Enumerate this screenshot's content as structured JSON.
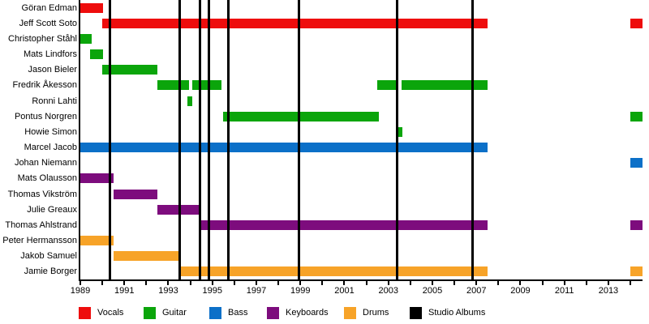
{
  "chart_data": {
    "type": "timeline",
    "description": "Band members tenure timeline with studio album release lines",
    "x_axis": {
      "min": 1989,
      "max": 2014.55,
      "tick_start": 1989,
      "tick_end": 2014,
      "tick_step": 1,
      "label_years": [
        1989,
        1991,
        1993,
        1995,
        1997,
        1999,
        2001,
        2003,
        2005,
        2007,
        2009,
        2011,
        2013
      ]
    },
    "colors": {
      "vocals": "#ee0d0d",
      "guitar": "#0ba50b",
      "bass": "#0c70c8",
      "keyboards": "#7d0c7d",
      "drums": "#f7a328",
      "albums": "#000000"
    },
    "legend": [
      {
        "label": "Vocals",
        "color": "vocals"
      },
      {
        "label": "Guitar",
        "color": "guitar"
      },
      {
        "label": "Bass",
        "color": "bass"
      },
      {
        "label": "Keyboards",
        "color": "keyboards"
      },
      {
        "label": "Drums",
        "color": "drums"
      },
      {
        "label": "Studio Albums",
        "color": "albums"
      }
    ],
    "studio_album_lines": [
      1990.35,
      1993.5,
      1994.43,
      1994.83,
      1995.72,
      1998.93,
      2003.4,
      2006.83
    ],
    "members": [
      {
        "name": "Göran Edman",
        "role": "vocals",
        "segments": [
          [
            1989,
            1990.05
          ]
        ]
      },
      {
        "name": "Jeff Scott Soto",
        "role": "vocals",
        "segments": [
          [
            1990,
            2007.5
          ],
          [
            2014,
            2014.55
          ]
        ]
      },
      {
        "name": "Christopher Ståhl",
        "role": "guitar",
        "segments": [
          [
            1989,
            1989.52
          ]
        ]
      },
      {
        "name": "Mats Lindfors",
        "role": "guitar",
        "segments": [
          [
            1989.45,
            1990.02
          ]
        ]
      },
      {
        "name": "Jason Bieler",
        "role": "guitar",
        "segments": [
          [
            1990,
            1992.5
          ]
        ]
      },
      {
        "name": "Fredrik Åkesson",
        "role": "guitar",
        "segments": [
          [
            1992.5,
            1993.95
          ],
          [
            1994.1,
            1995.4
          ],
          [
            2002.5,
            2003.45
          ],
          [
            2003.6,
            2007.5
          ]
        ]
      },
      {
        "name": "Ronni Lahti",
        "role": "guitar",
        "segments": [
          [
            1993.87,
            1994.1
          ]
        ]
      },
      {
        "name": "Pontus Norgren",
        "role": "guitar",
        "segments": [
          [
            1995.5,
            2002.55
          ],
          [
            2014,
            2014.55
          ]
        ]
      },
      {
        "name": "Howie Simon",
        "role": "guitar",
        "segments": [
          [
            2003.4,
            2003.65
          ]
        ]
      },
      {
        "name": "Marcel Jacob",
        "role": "bass",
        "segments": [
          [
            1989,
            2007.5
          ]
        ]
      },
      {
        "name": "Johan Niemann",
        "role": "bass",
        "segments": [
          [
            2014,
            2014.55
          ]
        ]
      },
      {
        "name": "Mats Olausson",
        "role": "keyboards",
        "segments": [
          [
            1989,
            1990.5
          ]
        ]
      },
      {
        "name": "Thomas Vikström",
        "role": "keyboards",
        "segments": [
          [
            1990.5,
            1992.5
          ]
        ]
      },
      {
        "name": "Julie Greaux",
        "role": "keyboards",
        "segments": [
          [
            1992.5,
            1994.5
          ]
        ]
      },
      {
        "name": "Thomas Ahlstrand",
        "role": "keyboards",
        "segments": [
          [
            1994.45,
            2007.5
          ],
          [
            2014,
            2014.55
          ]
        ]
      },
      {
        "name": "Peter Hermansson",
        "role": "drums",
        "segments": [
          [
            1989,
            1990.5
          ]
        ]
      },
      {
        "name": "Jakob Samuel",
        "role": "drums",
        "segments": [
          [
            1990.5,
            1993.5
          ]
        ]
      },
      {
        "name": "Jamie Borger",
        "role": "drums",
        "segments": [
          [
            1993.5,
            2007.5
          ],
          [
            2014,
            2014.55
          ]
        ]
      }
    ]
  }
}
